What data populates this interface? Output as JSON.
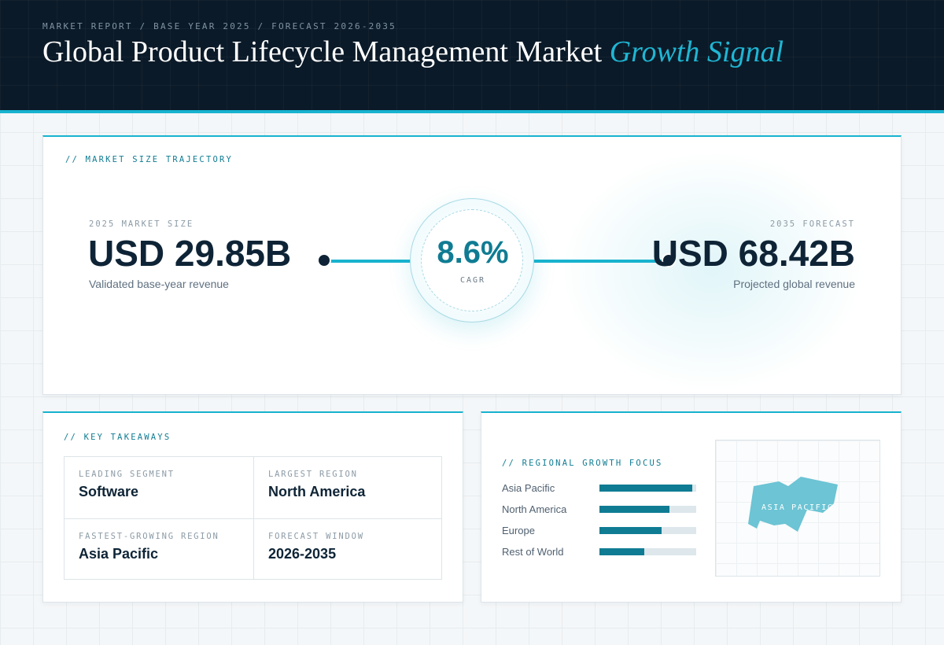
{
  "header": {
    "kicker": "MARKET REPORT / BASE YEAR 2025 / FORECAST 2026-2035",
    "title_main": "Global Product Lifecycle Management Market",
    "title_accent": "Growth Signal"
  },
  "trajectory": {
    "section_label": "// MARKET SIZE TRAJECTORY",
    "base": {
      "label": "2025 MARKET SIZE",
      "value": "USD 29.85B",
      "note": "Validated base-year revenue"
    },
    "cagr": {
      "value": "8.6%",
      "label": "CAGR"
    },
    "forecast": {
      "label": "2035 FORECAST",
      "value": "USD 68.42B",
      "note": "Projected global revenue"
    }
  },
  "takeaways": {
    "section_label": "// KEY TAKEAWAYS",
    "cells": [
      {
        "label": "LEADING SEGMENT",
        "value": "Software"
      },
      {
        "label": "LARGEST REGION",
        "value": "North America"
      },
      {
        "label": "FASTEST-GROWING REGION",
        "value": "Asia Pacific"
      },
      {
        "label": "FORECAST WINDOW",
        "value": "2026-2035"
      }
    ]
  },
  "regional": {
    "section_label": "// REGIONAL GROWTH FOCUS",
    "bars": [
      {
        "name": "Asia Pacific",
        "fraction": 0.96
      },
      {
        "name": "North America",
        "fraction": 0.72
      },
      {
        "name": "Europe",
        "fraction": 0.64
      },
      {
        "name": "Rest of World",
        "fraction": 0.46
      }
    ],
    "map_label": "ASIA PACIFIC"
  },
  "colors": {
    "accent": "#18b3cf",
    "accent_dark": "#0f7c93",
    "navy": "#0e2436",
    "map_region": "#6cc4d4"
  }
}
